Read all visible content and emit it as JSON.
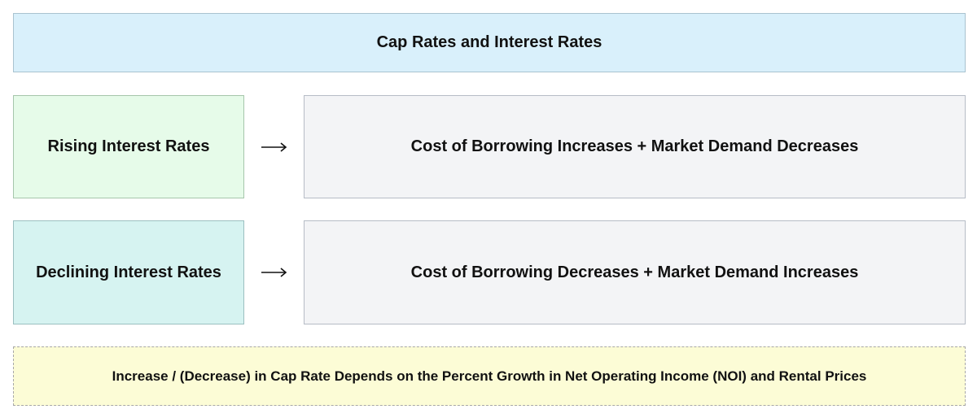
{
  "diagram": {
    "title": "Cap Rates and Interest Rates",
    "rows": [
      {
        "cause": "Rising Interest Rates",
        "effect": "Cost of Borrowing Increases + Market Demand Decreases"
      },
      {
        "cause": "Declining Interest Rates",
        "effect": "Cost of Borrowing Decreases + Market Demand Increases"
      }
    ],
    "note": "Increase / (Decrease) in Cap Rate Depends on the Percent Growth in Net Operating Income (NOI) and Rental Prices"
  },
  "icons": {
    "arrow": "arrow-right-icon"
  },
  "colors": {
    "title_bg": "#d9f0fb",
    "rising_bg": "#e6fbe9",
    "declining_bg": "#d6f3f1",
    "effect_bg": "#f3f4f6",
    "note_bg": "#fcfcd6"
  }
}
